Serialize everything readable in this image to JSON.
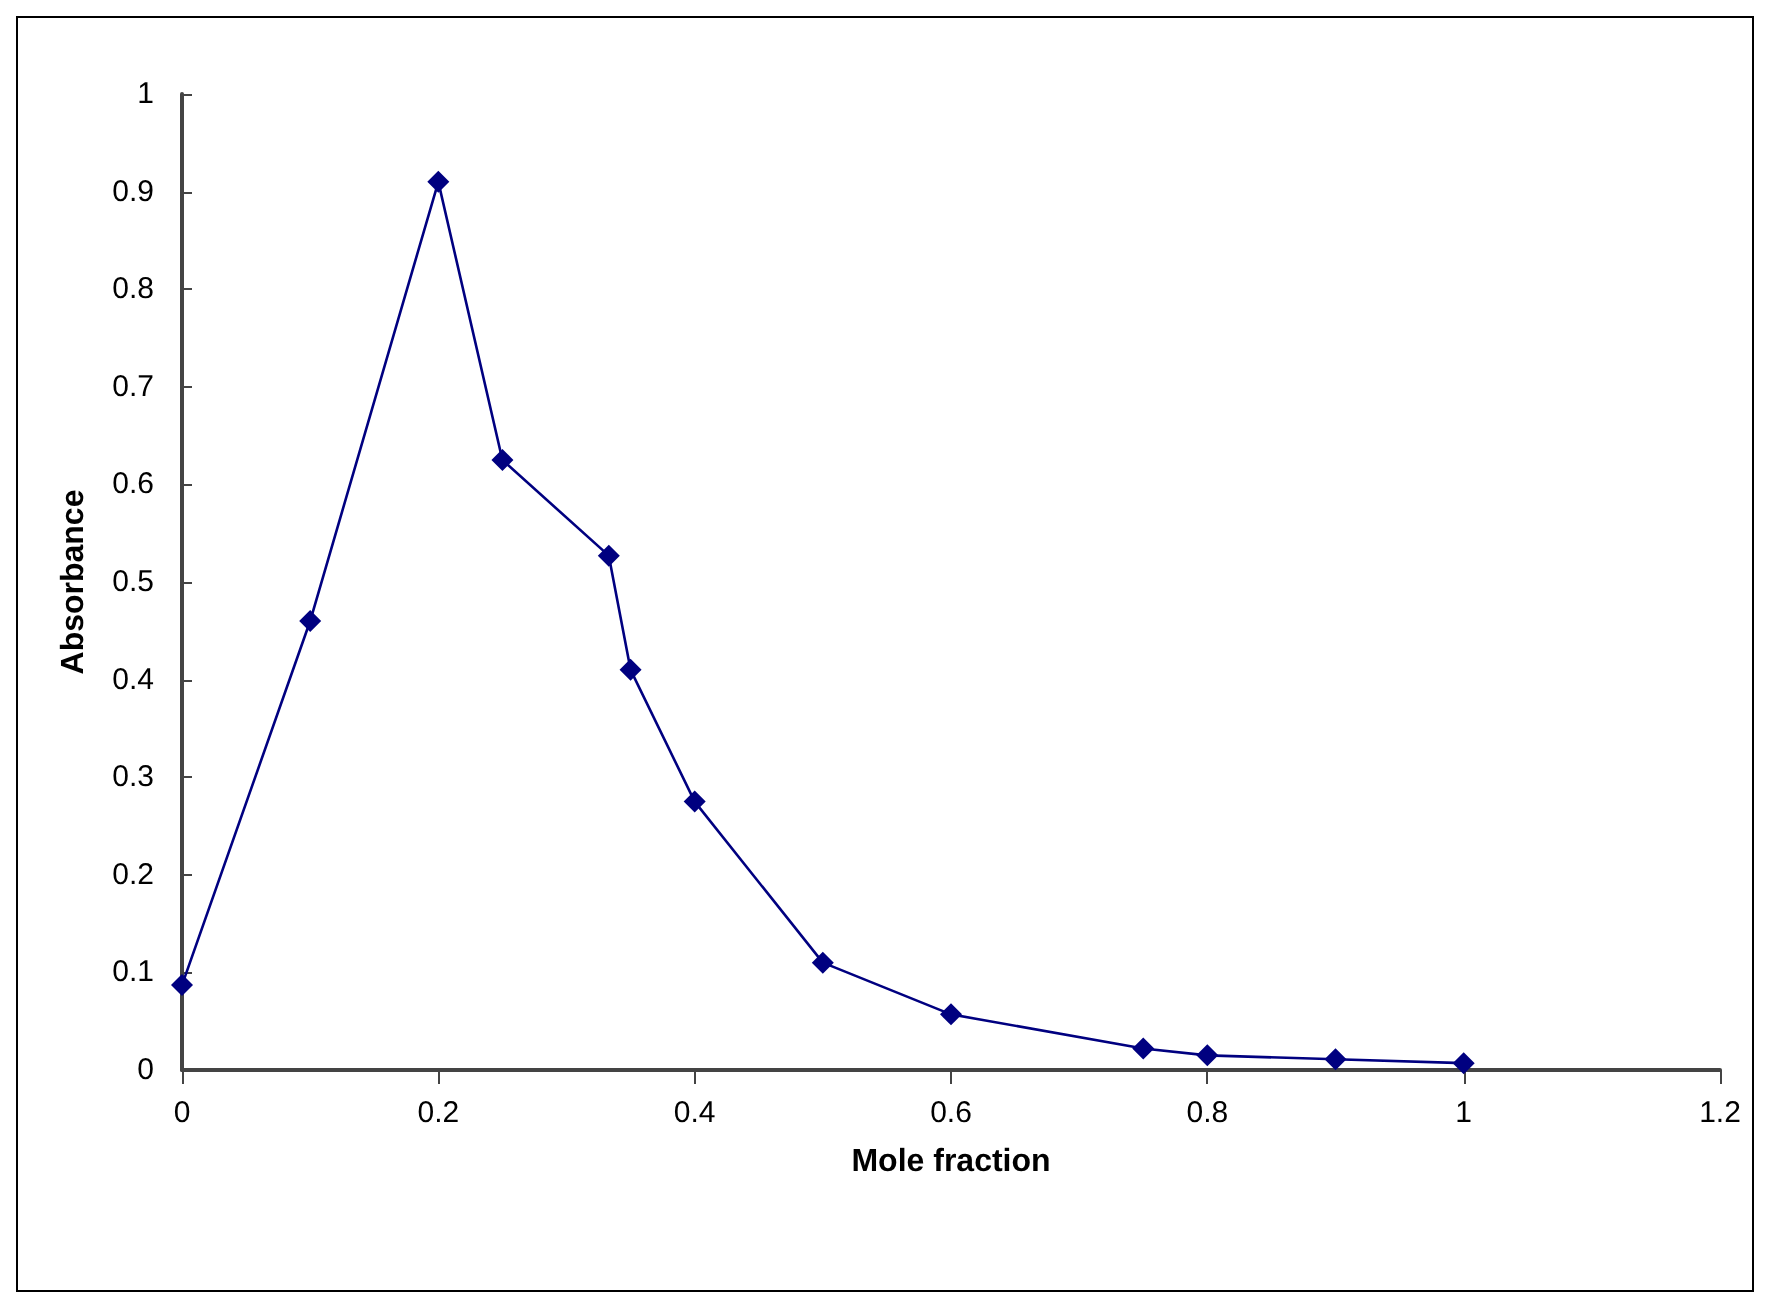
{
  "chart_data": {
    "type": "line",
    "xlabel": "Mole fraction",
    "ylabel": "Absorbance",
    "series": [
      {
        "color": "#000080",
        "x": [
          0,
          0.1,
          0.2,
          0.25,
          0.333,
          0.35,
          0.4,
          0.5,
          0.6,
          0.75,
          0.8,
          0.9,
          1
        ],
        "values": [
          0.087,
          0.46,
          0.91,
          0.625,
          0.527,
          0.41,
          0.275,
          0.11,
          0.057,
          0.022,
          0.015,
          0.011,
          0.007
        ]
      }
    ],
    "xlim": [
      0,
      1.2
    ],
    "xticks": [
      0,
      0.2,
      0.4,
      0.6,
      0.8,
      1,
      1.2
    ],
    "ylim": [
      0,
      1
    ],
    "yticks": [
      0,
      0.1,
      0.2,
      0.3,
      0.4,
      0.5,
      0.6,
      0.7,
      0.8,
      0.9,
      1
    ],
    "grid": false,
    "marker": "diamond",
    "line_style": "solid"
  }
}
